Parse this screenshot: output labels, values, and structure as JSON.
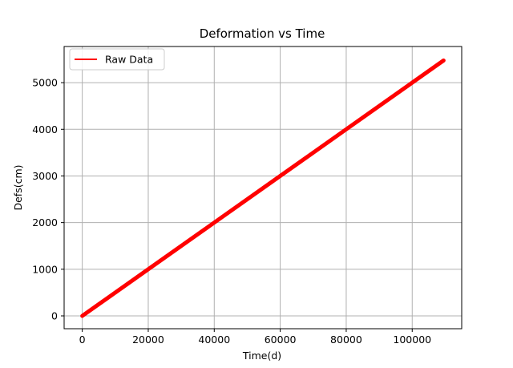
{
  "chart_data": {
    "type": "line",
    "title": "Deformation vs Time",
    "xlabel": "Time(d)",
    "ylabel": "Defs(cm)",
    "xlim": [
      -5500,
      115000
    ],
    "ylim": [
      -275,
      5775
    ],
    "xticks": [
      0,
      20000,
      40000,
      60000,
      80000,
      100000
    ],
    "yticks": [
      0,
      1000,
      2000,
      3000,
      4000,
      5000
    ],
    "grid": true,
    "legend_position": "upper-left",
    "series": [
      {
        "name": "Raw Data",
        "color": "#ff0000",
        "x": [
          0,
          20000,
          40000,
          60000,
          80000,
          100000,
          109500
        ],
        "y": [
          0,
          1000,
          2000,
          3000,
          4000,
          5000,
          5475
        ]
      }
    ]
  }
}
